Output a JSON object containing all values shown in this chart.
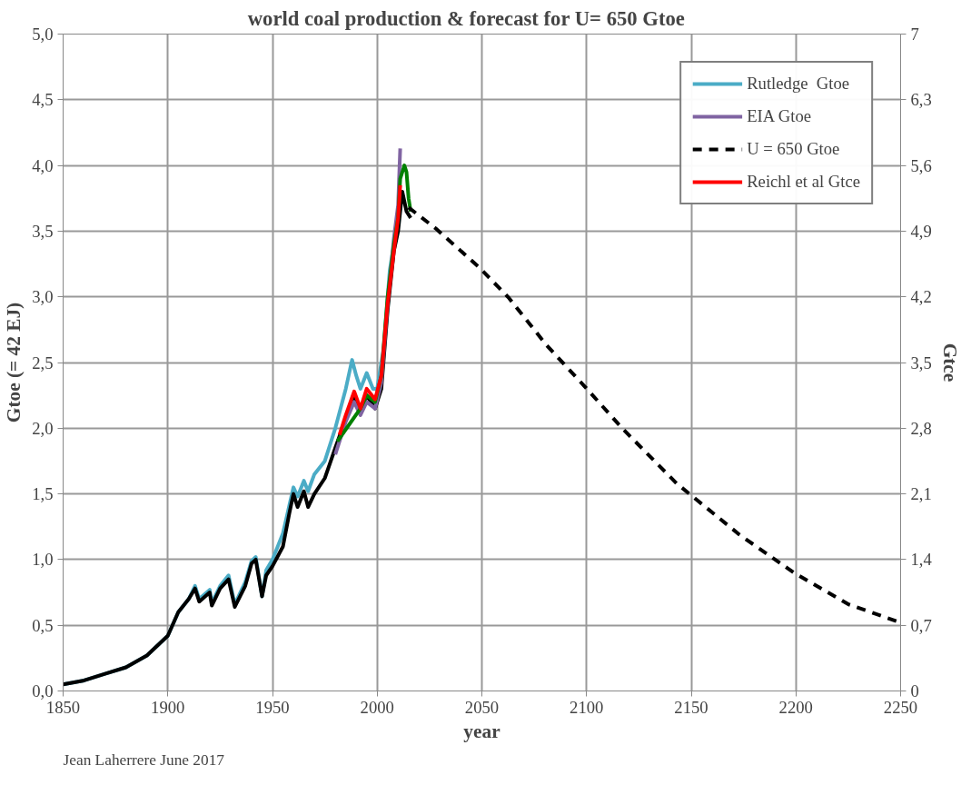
{
  "chart_data": {
    "type": "line",
    "title": "world  coal production  &  forecast  for  U= 650  Gtoe",
    "xlabel": "year",
    "ylabel": "Gtoe (= 42 EJ)",
    "y2label": "Gtce",
    "annotations": [
      "Jean Laherrere  June 2017"
    ],
    "xlim": [
      1850,
      2250
    ],
    "xticks": [
      1850,
      1900,
      1950,
      2000,
      2050,
      2100,
      2150,
      2200,
      2250
    ],
    "ylim": [
      0,
      5
    ],
    "yticks": [
      {
        "value": 0,
        "label": "0,0"
      },
      {
        "value": 0.5,
        "label": "0,5"
      },
      {
        "value": 1,
        "label": "1,0"
      },
      {
        "value": 1.5,
        "label": "1,5"
      },
      {
        "value": 2,
        "label": "2,0"
      },
      {
        "value": 2.5,
        "label": "2,5"
      },
      {
        "value": 3,
        "label": "3,0"
      },
      {
        "value": 3.5,
        "label": "3,5"
      },
      {
        "value": 4,
        "label": "4,0"
      },
      {
        "value": 4.5,
        "label": "4,5"
      },
      {
        "value": 5,
        "label": "5,0"
      }
    ],
    "y2lim": [
      0,
      7
    ],
    "y2ticks": [
      0,
      {
        "value": 0.7,
        "label": "0,7"
      },
      {
        "value": 1.4,
        "label": "1,4"
      },
      {
        "value": 2.1,
        "label": "2,1"
      },
      {
        "value": 2.8,
        "label": "2,8"
      },
      {
        "value": 3.5,
        "label": "3,5"
      },
      {
        "value": 4.2,
        "label": "4,2"
      },
      {
        "value": 4.9,
        "label": "4,9"
      },
      {
        "value": 5.6,
        "label": "5,6"
      },
      {
        "value": 6.3,
        "label": "6,3"
      },
      7
    ],
    "grid": true,
    "legend": "top right",
    "line_style": "solid",
    "series": [
      {
        "name": "Rutledge  Gtoe",
        "color": "#4bacc6",
        "x": [
          1850,
          1860,
          1870,
          1880,
          1890,
          1900,
          1905,
          1910,
          1913,
          1915,
          1920,
          1921,
          1925,
          1929,
          1932,
          1937,
          1940,
          1942,
          1945,
          1947,
          1950,
          1955,
          1960,
          1962,
          1965,
          1967,
          1970,
          1975,
          1980,
          1985,
          1988,
          1990,
          1992,
          1995,
          1998,
          2000,
          2003,
          2006,
          2008,
          2010
        ],
        "values": [
          0.05,
          0.08,
          0.13,
          0.18,
          0.27,
          0.42,
          0.6,
          0.7,
          0.8,
          0.7,
          0.77,
          0.67,
          0.8,
          0.88,
          0.66,
          0.83,
          0.99,
          1.02,
          0.72,
          0.92,
          1.0,
          1.2,
          1.55,
          1.48,
          1.6,
          1.52,
          1.65,
          1.75,
          2.0,
          2.3,
          2.52,
          2.4,
          2.3,
          2.42,
          2.3,
          2.3,
          2.6,
          3.2,
          3.4,
          3.6
        ]
      },
      {
        "color": "#000000",
        "x": [
          1850,
          1860,
          1870,
          1880,
          1890,
          1900,
          1905,
          1910,
          1913,
          1915,
          1920,
          1921,
          1925,
          1929,
          1932,
          1937,
          1940,
          1942,
          1945,
          1947,
          1950,
          1955,
          1958,
          1960,
          1962,
          1965,
          1967,
          1970,
          1975,
          1980,
          1989,
          1992,
          1995,
          1999,
          2002,
          2005,
          2008,
          2010,
          2012,
          2014,
          2016
        ],
        "values": [
          0.05,
          0.08,
          0.13,
          0.18,
          0.27,
          0.42,
          0.6,
          0.7,
          0.78,
          0.68,
          0.75,
          0.65,
          0.78,
          0.85,
          0.64,
          0.8,
          0.97,
          1.0,
          0.72,
          0.88,
          0.95,
          1.1,
          1.35,
          1.5,
          1.4,
          1.52,
          1.4,
          1.5,
          1.62,
          1.85,
          2.25,
          2.12,
          2.25,
          2.15,
          2.3,
          2.9,
          3.35,
          3.5,
          3.8,
          3.65,
          3.6
        ]
      },
      {
        "name": "EIA Gtoe",
        "color": "#8064a2",
        "x": [
          1980,
          1985,
          1989,
          1992,
          1995,
          1999,
          2002,
          2005,
          2008,
          2010,
          2011
        ],
        "values": [
          1.8,
          2.05,
          2.2,
          2.1,
          2.2,
          2.15,
          2.35,
          2.95,
          3.45,
          3.7,
          4.13
        ]
      },
      {
        "color": "#008000",
        "x": [
          1981,
          1992,
          1995,
          1999,
          2002,
          2005,
          2008,
          2010,
          2011,
          2013,
          2014,
          2015,
          2016
        ],
        "values": [
          1.9,
          2.15,
          2.25,
          2.2,
          2.4,
          3.0,
          3.4,
          3.6,
          3.9,
          4.0,
          3.95,
          3.75,
          3.65
        ]
      },
      {
        "name": "U = 650 Gtoe",
        "color": "#000000",
        "line_style": "dashed",
        "x": [
          2015,
          2028,
          2049,
          2063,
          2081,
          2099,
          2117,
          2143,
          2173,
          2199,
          2225,
          2250
        ],
        "values": [
          3.68,
          3.52,
          3.22,
          2.99,
          2.63,
          2.32,
          2.0,
          1.58,
          1.19,
          0.9,
          0.66,
          0.52
        ]
      },
      {
        "name": "Reichl et al Gtce",
        "color": "#ff0000",
        "x": [
          1982,
          1985,
          1989,
          1992,
          1995,
          1999,
          2002,
          2005,
          2008,
          2010,
          2011
        ],
        "values": [
          1.95,
          2.1,
          2.28,
          2.15,
          2.3,
          2.22,
          2.4,
          2.95,
          3.35,
          3.6,
          3.85
        ]
      }
    ]
  }
}
